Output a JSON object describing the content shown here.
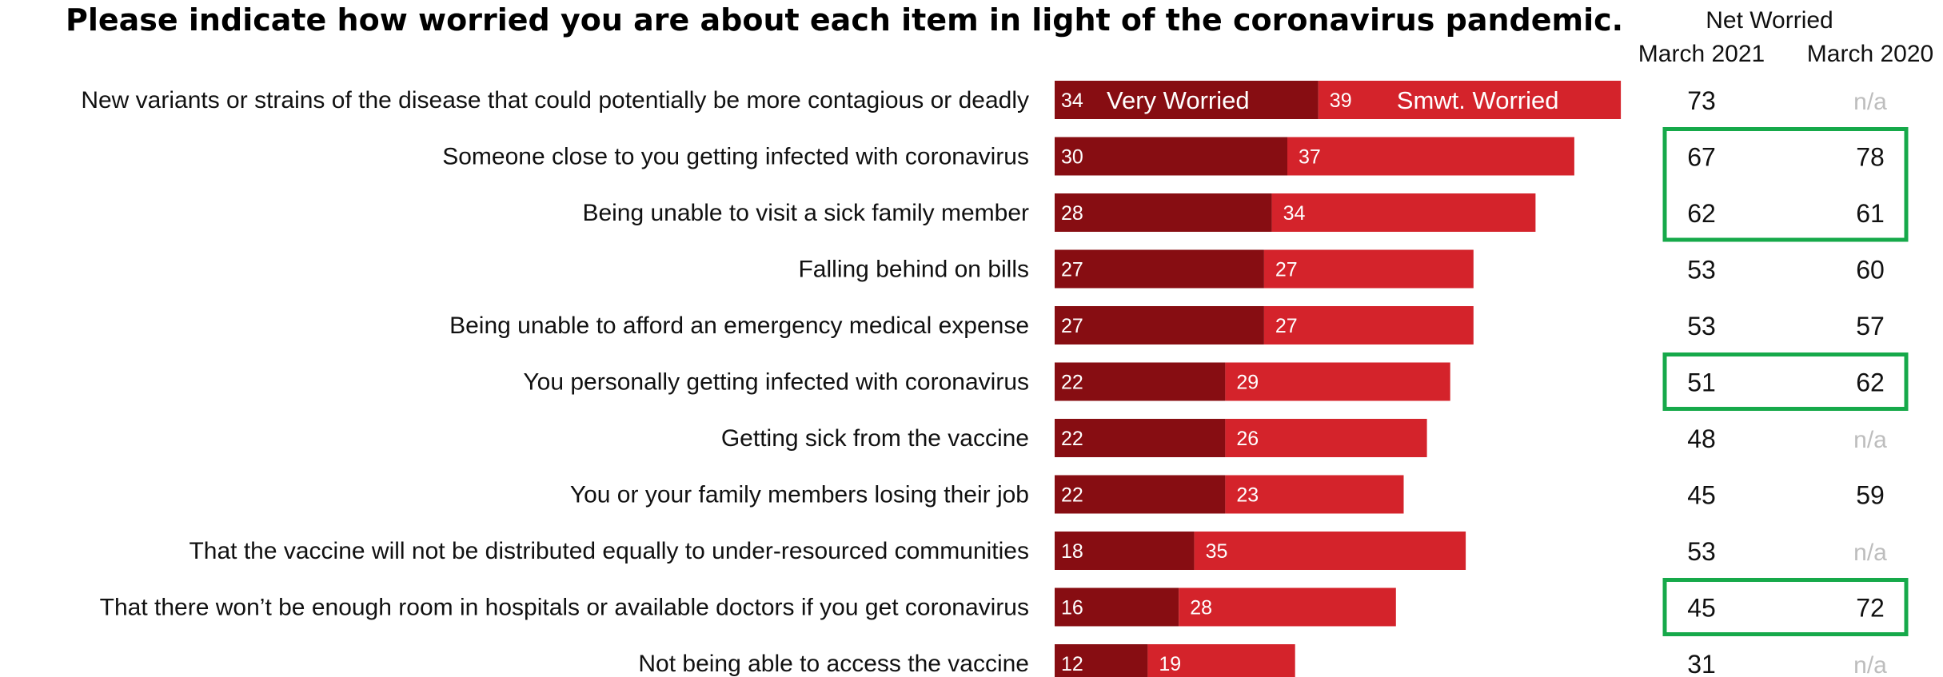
{
  "title": "Please indicate how worried you are about each item in light of the coronavirus pandemic.",
  "net_header": {
    "title": "Net Worried",
    "col_2021": "March 2021",
    "col_2020": "March 2020"
  },
  "colors": {
    "very_worried": "#870d12",
    "smwt_worried": "#d4232b",
    "highlight_box": "#16a94a",
    "na_text": "#bdbdbd"
  },
  "chart_data": {
    "type": "bar",
    "orientation": "horizontal",
    "stacked": true,
    "categories": [
      "New variants or strains of the disease that could potentially be more contagious or deadly",
      "Someone close to you getting infected with coronavirus",
      "Being unable to visit a sick family member",
      "Falling behind on bills",
      "Being unable to afford an emergency medical expense",
      "You personally getting infected with coronavirus",
      "Getting sick from the vaccine",
      "You or your family members losing their job",
      "That the vaccine will not be distributed equally to under-resourced communities",
      "That there won’t be enough room in hospitals or available doctors if you get coronavirus",
      "Not being able to access the vaccine"
    ],
    "series": [
      {
        "name": "Very Worried",
        "values": [
          34,
          30,
          28,
          27,
          27,
          22,
          22,
          22,
          18,
          16,
          12
        ]
      },
      {
        "name": "Smwt. Worried",
        "values": [
          39,
          37,
          34,
          27,
          27,
          29,
          26,
          23,
          35,
          28,
          19
        ]
      }
    ],
    "net_worried_march_2021": [
      "73",
      "67",
      "62",
      "53",
      "53",
      "51",
      "48",
      "45",
      "53",
      "45",
      "31"
    ],
    "net_worried_march_2020": [
      "n/a",
      "78",
      "61",
      "60",
      "57",
      "62",
      "n/a",
      "59",
      "n/a",
      "72",
      "n/a"
    ],
    "highlighted_rows": [
      [
        1,
        2
      ],
      [
        5,
        5
      ],
      [
        9,
        9
      ]
    ],
    "legend": "inline in first bar"
  }
}
